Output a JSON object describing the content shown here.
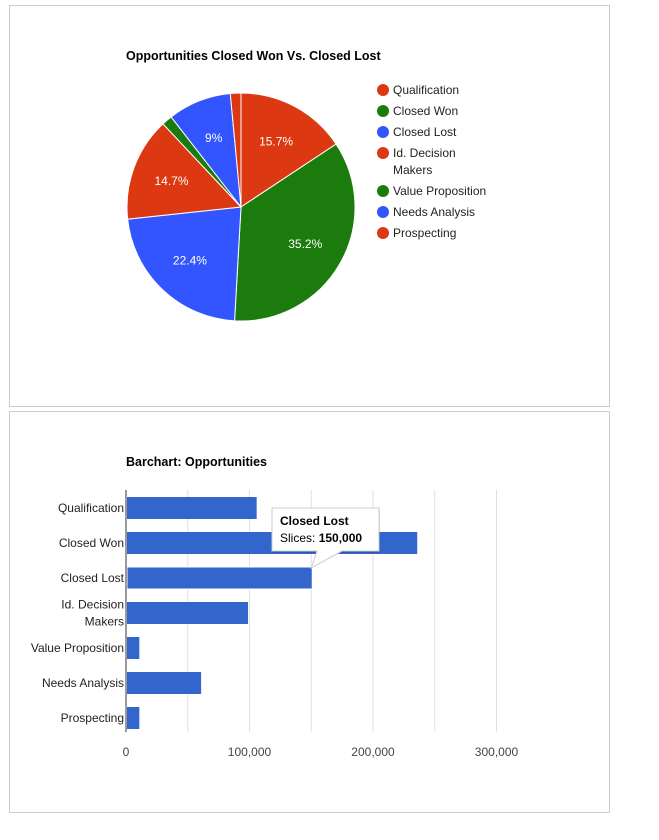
{
  "chart_data": [
    {
      "type": "pie",
      "title": "Opportunities Closed Won Vs. Closed Lost",
      "categories": [
        "Qualification",
        "Closed Won",
        "Closed Lost",
        "Id. Decision Makers",
        "Value Proposition",
        "Needs Analysis",
        "Prospecting"
      ],
      "values": [
        15.7,
        35.2,
        22.4,
        14.7,
        1.5,
        9.0,
        1.5
      ],
      "slice_labels": [
        "15.7%",
        "35.2%",
        "22.4%",
        "14.7%",
        "",
        "9%",
        ""
      ],
      "colors": [
        "#dc3912",
        "#1c7b0d",
        "#3355ff",
        "#dc3912",
        "#1c7b0d",
        "#3355ff",
        "#dc3912"
      ],
      "legend": {
        "position": "right",
        "entries": [
          {
            "label": "Qualification",
            "color": "#dc3912"
          },
          {
            "label": "Closed Won",
            "color": "#1c7b0d"
          },
          {
            "label": "Closed Lost",
            "color": "#3355ff"
          },
          {
            "label": "Id. Decision Makers",
            "color": "#dc3912"
          },
          {
            "label": "Value Proposition",
            "color": "#1c7b0d"
          },
          {
            "label": "Needs Analysis",
            "color": "#3355ff"
          },
          {
            "label": "Prospecting",
            "color": "#dc3912"
          }
        ]
      }
    },
    {
      "type": "bar",
      "orientation": "horizontal",
      "title": "Barchart: Opportunities",
      "categories": [
        "Qualification",
        "Closed Won",
        "Closed Lost",
        "Id. Decision Makers",
        "Value Proposition",
        "Needs Analysis",
        "Prospecting"
      ],
      "series": [
        {
          "values": [
            105000,
            235000,
            150000,
            98000,
            10000,
            60000,
            10000
          ],
          "color": "#3366cc"
        }
      ],
      "xlim": [
        0,
        300000
      ],
      "xticks": [
        "0",
        "100,000",
        "200,000",
        "300,000"
      ],
      "grid": true,
      "tooltip": {
        "category": "Closed Lost",
        "series_label": "Slices:",
        "value_text": "150,000"
      }
    }
  ]
}
